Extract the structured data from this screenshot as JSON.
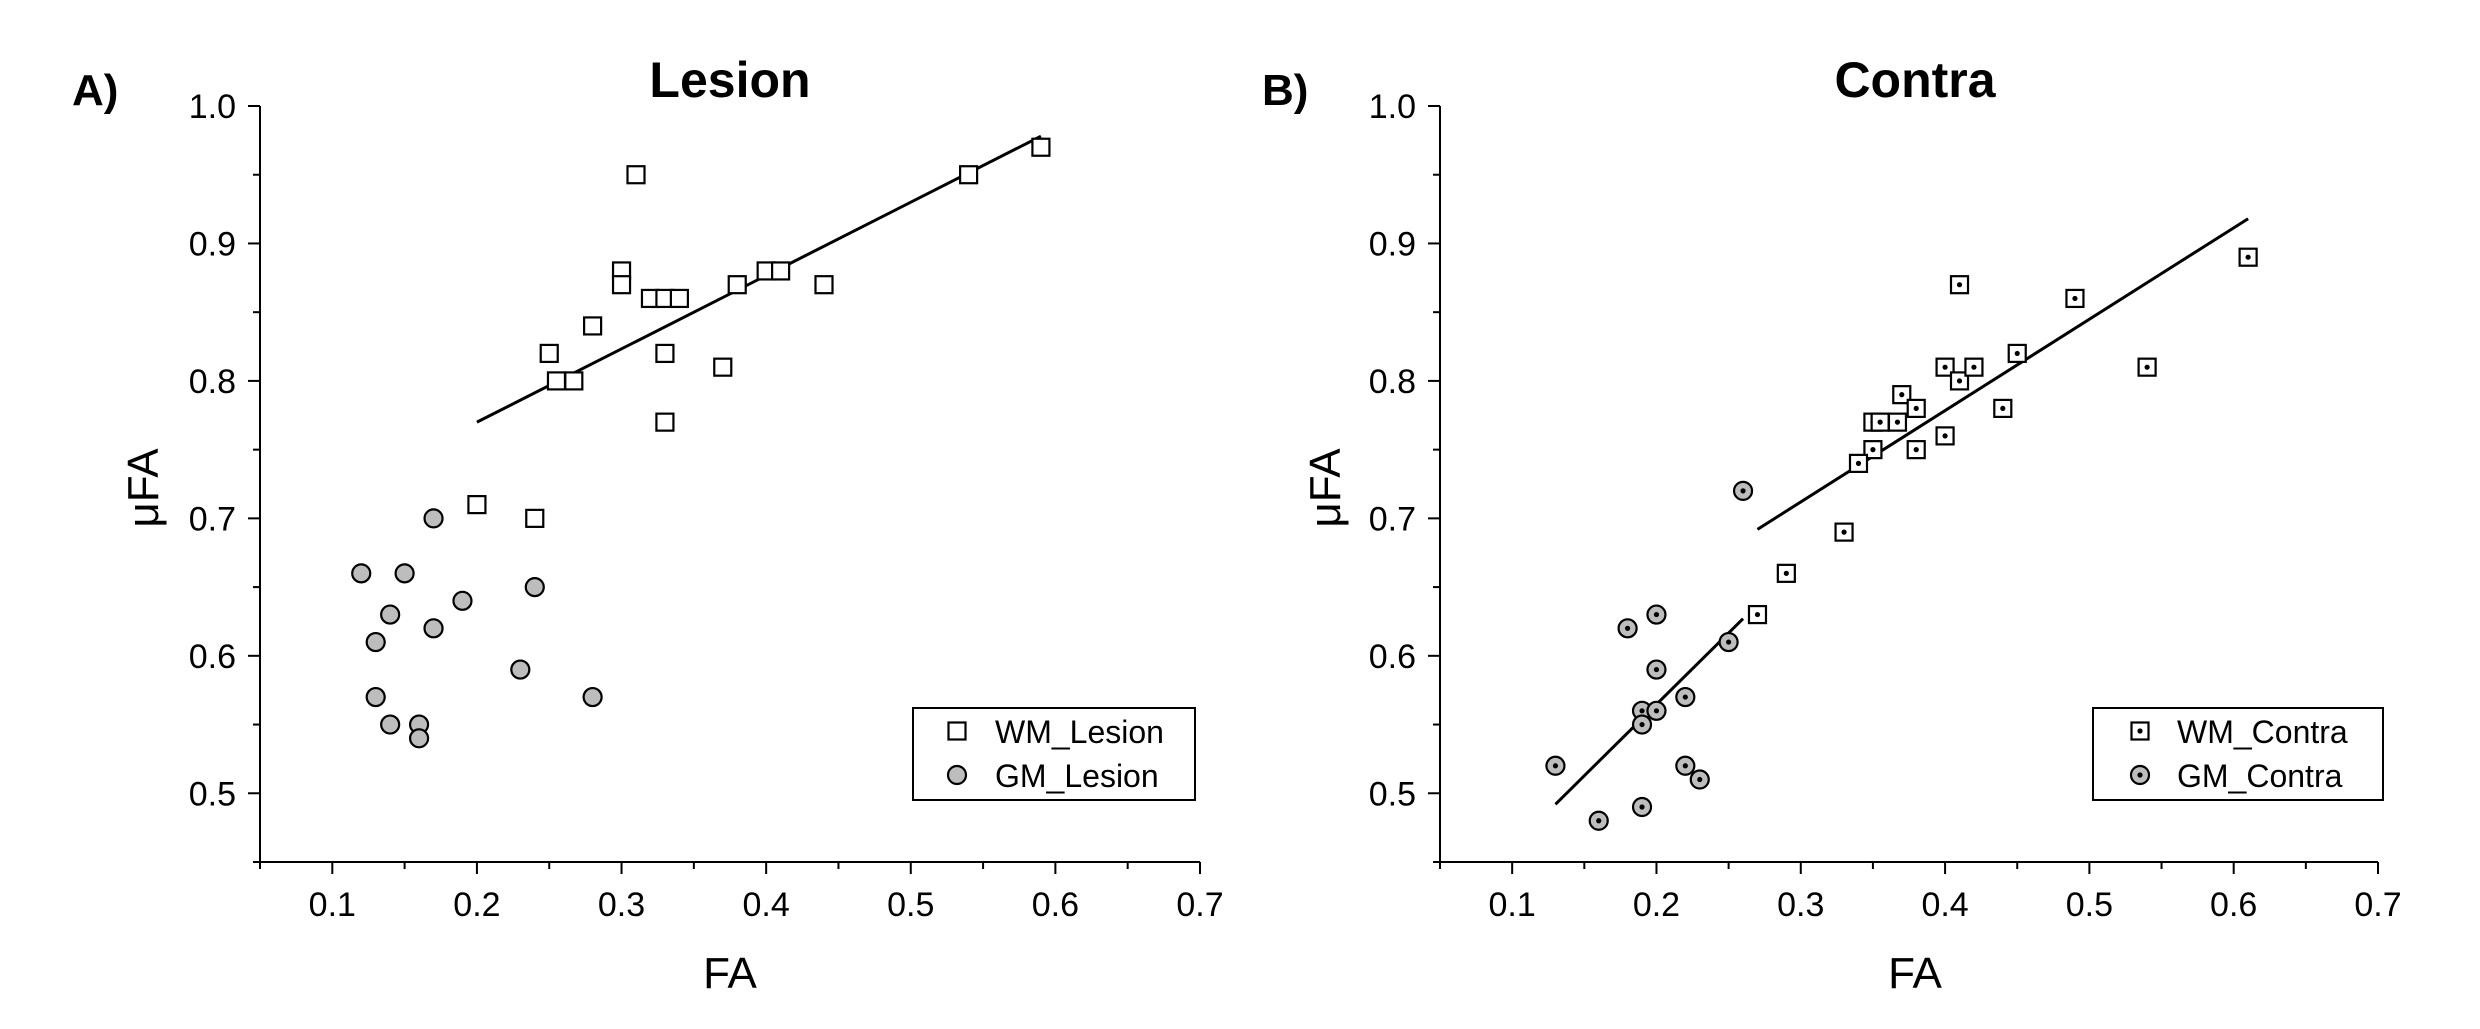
{
  "chart_data": [
    {
      "type": "scatter",
      "panel_label": "A)",
      "title": "Lesion",
      "xlabel": "FA",
      "ylabel": "μFA",
      "xlim": [
        0.05,
        0.7
      ],
      "ylim": [
        0.45,
        1.0
      ],
      "xticks": [
        0.1,
        0.2,
        0.3,
        0.4,
        0.5,
        0.6,
        0.7
      ],
      "xtick_labels": [
        "0.1",
        "0.2",
        "0.3",
        "0.4",
        "0.5",
        "0.6",
        "0.7"
      ],
      "yticks": [
        0.5,
        0.6,
        0.7,
        0.8,
        0.9,
        1.0
      ],
      "ytick_labels": [
        "0.5",
        "0.6",
        "0.7",
        "0.8",
        "0.9",
        "1.0"
      ],
      "legend_position": "bottom-right",
      "series": [
        {
          "name": "WM_Lesion",
          "marker": "square",
          "x": [
            0.59,
            0.54,
            0.31,
            0.3,
            0.3,
            0.32,
            0.33,
            0.34,
            0.38,
            0.4,
            0.41,
            0.44,
            0.28,
            0.25,
            0.255,
            0.267,
            0.33,
            0.37,
            0.33,
            0.2,
            0.24
          ],
          "y": [
            0.97,
            0.95,
            0.95,
            0.88,
            0.87,
            0.86,
            0.86,
            0.86,
            0.87,
            0.88,
            0.88,
            0.87,
            0.84,
            0.82,
            0.8,
            0.8,
            0.82,
            0.81,
            0.77,
            0.71,
            0.7
          ]
        },
        {
          "name": "GM_Lesion",
          "marker": "circle",
          "x": [
            0.17,
            0.12,
            0.15,
            0.14,
            0.19,
            0.24,
            0.17,
            0.13,
            0.23,
            0.13,
            0.28,
            0.14,
            0.16,
            0.16
          ],
          "y": [
            0.7,
            0.66,
            0.66,
            0.63,
            0.64,
            0.65,
            0.62,
            0.61,
            0.59,
            0.57,
            0.57,
            0.55,
            0.55,
            0.54
          ]
        }
      ],
      "fit_lines": [
        {
          "series": "WM_Lesion",
          "x": [
            0.2,
            0.59
          ],
          "y": [
            0.77,
            0.978
          ]
        }
      ]
    },
    {
      "type": "scatter",
      "panel_label": "B)",
      "title": "Contra",
      "xlabel": "FA",
      "ylabel": "μFA",
      "xlim": [
        0.05,
        0.7
      ],
      "ylim": [
        0.45,
        1.0
      ],
      "xticks": [
        0.1,
        0.2,
        0.3,
        0.4,
        0.5,
        0.6,
        0.7
      ],
      "xtick_labels": [
        "0.1",
        "0.2",
        "0.3",
        "0.4",
        "0.5",
        "0.6",
        "0.7"
      ],
      "yticks": [
        0.5,
        0.6,
        0.7,
        0.8,
        0.9,
        1.0
      ],
      "ytick_labels": [
        "0.5",
        "0.6",
        "0.7",
        "0.8",
        "0.9",
        "1.0"
      ],
      "legend_position": "bottom-right",
      "series": [
        {
          "name": "WM_Contra",
          "marker": "square-dot",
          "x": [
            0.61,
            0.49,
            0.54,
            0.41,
            0.4,
            0.41,
            0.42,
            0.45,
            0.37,
            0.38,
            0.35,
            0.355,
            0.367,
            0.4,
            0.44,
            0.35,
            0.38,
            0.34,
            0.33,
            0.29,
            0.27
          ],
          "y": [
            0.89,
            0.86,
            0.81,
            0.87,
            0.81,
            0.8,
            0.81,
            0.82,
            0.79,
            0.78,
            0.77,
            0.77,
            0.77,
            0.76,
            0.78,
            0.75,
            0.75,
            0.74,
            0.69,
            0.66,
            0.63
          ]
        },
        {
          "name": "GM_Contra",
          "marker": "circle-dot",
          "x": [
            0.26,
            0.18,
            0.2,
            0.25,
            0.2,
            0.19,
            0.22,
            0.2,
            0.19,
            0.22,
            0.23,
            0.13,
            0.16,
            0.19
          ],
          "y": [
            0.72,
            0.62,
            0.63,
            0.61,
            0.59,
            0.56,
            0.57,
            0.56,
            0.55,
            0.52,
            0.51,
            0.52,
            0.48,
            0.49
          ]
        }
      ],
      "fit_lines": [
        {
          "series": "WM_Contra",
          "x": [
            0.27,
            0.61
          ],
          "y": [
            0.692,
            0.918
          ]
        },
        {
          "series": "GM_Contra",
          "x": [
            0.13,
            0.26
          ],
          "y": [
            0.492,
            0.627
          ]
        }
      ]
    }
  ]
}
